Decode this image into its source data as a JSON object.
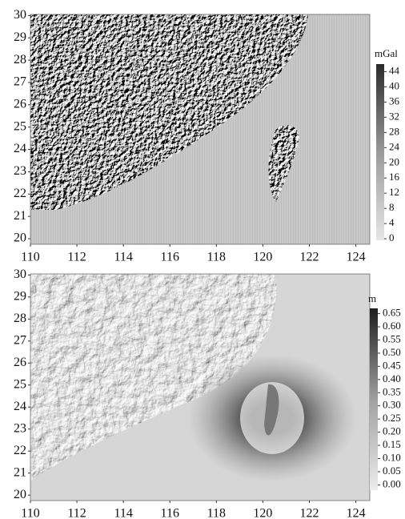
{
  "chart_data": [
    {
      "type": "map",
      "xlim": [
        110,
        124.6
      ],
      "ylim": [
        19.75,
        30.05
      ],
      "xticks": [
        110,
        112,
        114,
        116,
        118,
        120,
        122,
        124
      ],
      "yticks": [
        20,
        21,
        22,
        23,
        24,
        25,
        26,
        27,
        28,
        29,
        30
      ],
      "colorbar": {
        "title": "mGal",
        "lim": [
          -0.4,
          46
        ],
        "ticks": [
          0,
          4,
          8,
          12,
          16,
          20,
          24,
          28,
          32,
          36,
          40,
          44
        ]
      }
    },
    {
      "type": "map",
      "xlim": [
        110,
        124.6
      ],
      "ylim": [
        19.75,
        30.05
      ],
      "xticks": [
        110,
        112,
        114,
        116,
        118,
        120,
        122,
        124
      ],
      "yticks": [
        20,
        21,
        22,
        23,
        24,
        25,
        26,
        27,
        28,
        29,
        30
      ],
      "colorbar": {
        "title": "m",
        "lim": [
          -0.02,
          0.67
        ],
        "ticks": [
          {
            "value": 0,
            "label": "0.00"
          },
          {
            "value": 0.05,
            "label": "0.05"
          },
          {
            "value": 0.1,
            "label": "0.10"
          },
          {
            "value": 0.15,
            "label": "0.15"
          },
          {
            "value": 0.2,
            "label": "0.20"
          },
          {
            "value": 0.25,
            "label": "0.25"
          },
          {
            "value": 0.3,
            "label": "0.30"
          },
          {
            "value": 0.35,
            "label": "0.35"
          },
          {
            "value": 0.4,
            "label": "0.40"
          },
          {
            "value": 0.45,
            "label": "0.45"
          },
          {
            "value": 0.5,
            "label": "0.50"
          },
          {
            "value": 0.55,
            "label": "0.55"
          },
          {
            "value": 0.6,
            "label": "0.60"
          },
          {
            "value": 0.65,
            "label": "0.65"
          }
        ]
      }
    }
  ]
}
